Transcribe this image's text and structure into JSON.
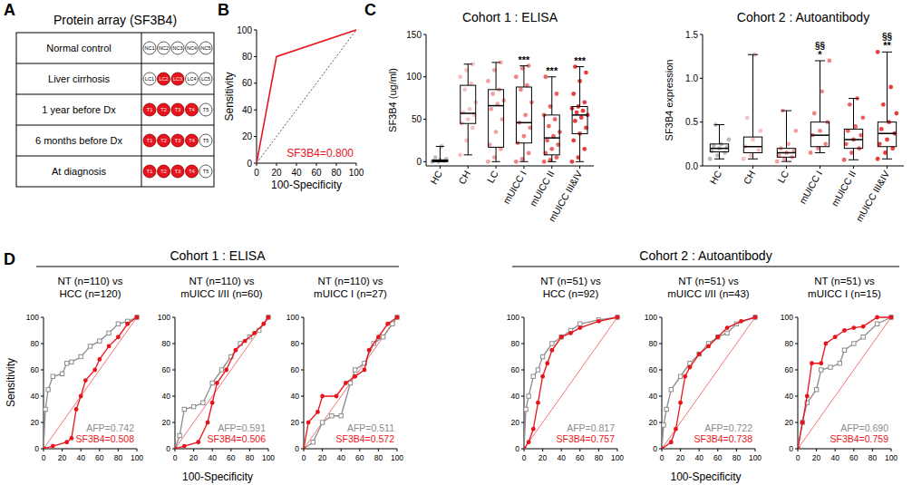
{
  "panel_labels": [
    "A",
    "B",
    "C",
    "D"
  ],
  "protein_array": {
    "title": "Protein array (SF3B4)",
    "color": "#e8141b",
    "rows": [
      {
        "label": "Normal control",
        "spots": [
          {
            "label": "NC1",
            "positive": false
          },
          {
            "label": "NC2",
            "positive": false
          },
          {
            "label": "NC3",
            "positive": false
          },
          {
            "label": "NC4",
            "positive": false
          },
          {
            "label": "NC5",
            "positive": false
          }
        ]
      },
      {
        "label": "Liver cirrhosis",
        "spots": [
          {
            "label": "LC1",
            "positive": false
          },
          {
            "label": "LC2",
            "positive": true
          },
          {
            "label": "LC3",
            "positive": true
          },
          {
            "label": "LC4",
            "positive": false
          },
          {
            "label": "LC5",
            "positive": false
          }
        ]
      },
      {
        "label": "1 year before Dx",
        "spots": [
          {
            "label": "T1",
            "positive": true
          },
          {
            "label": "T2",
            "positive": true
          },
          {
            "label": "T3",
            "positive": true
          },
          {
            "label": "T4",
            "positive": true
          },
          {
            "label": "T5",
            "positive": false
          }
        ]
      },
      {
        "label": "6 months before Dx",
        "spots": [
          {
            "label": "T1",
            "positive": true
          },
          {
            "label": "T2",
            "positive": true
          },
          {
            "label": "T3",
            "positive": true
          },
          {
            "label": "T4",
            "positive": true
          },
          {
            "label": "T5",
            "positive": false
          }
        ]
      },
      {
        "label": "At diagnosis",
        "spots": [
          {
            "label": "T1",
            "positive": true
          },
          {
            "label": "T2",
            "positive": true
          },
          {
            "label": "T3",
            "positive": true
          },
          {
            "label": "T4",
            "positive": true
          },
          {
            "label": "T5",
            "positive": false
          }
        ]
      }
    ]
  },
  "roc_groups": {
    "y_label": "Sensitivity",
    "groups": [
      {
        "title": "Cohort 1 : ELISA",
        "x_label": "100-Specificity"
      },
      {
        "title": "Cohort 2 : Autoantibody",
        "x_label": "100-Specificity"
      }
    ]
  },
  "chart_data": [
    {
      "type": "line",
      "x_label": "100-Specificity",
      "y_label": "Sensitivity",
      "xlim": [
        0,
        100
      ],
      "ylim": [
        0,
        100
      ],
      "xticks": [
        0,
        20,
        40,
        60,
        80,
        100
      ],
      "yticks": [
        0,
        20,
        40,
        60,
        80,
        100
      ],
      "series": [
        {
          "label": "SF3B4=0.800",
          "color": "#e8141b",
          "x": [
            0,
            20,
            100
          ],
          "values": [
            0,
            80,
            100
          ]
        }
      ]
    },
    {
      "type": "box",
      "title": "Cohort 1 : ELISA",
      "y_label": "SF3B4 (ug/ml)",
      "categories": [
        "HC",
        "CH",
        "LC",
        "mUICC I",
        "mUICC II",
        "mUICC III&IV"
      ],
      "ylim": [
        -5,
        150
      ],
      "yticks": [
        0,
        50,
        100,
        150
      ],
      "colors": [
        "#b0b0b0",
        "#f4b6b6",
        "#f08f8f",
        "#ec6f6f",
        "#e84848",
        "#e41a1c"
      ],
      "min": [
        0,
        8,
        0,
        0,
        0,
        0
      ],
      "q1": [
        0,
        45,
        17,
        22,
        8,
        33
      ],
      "median": [
        1,
        57,
        66,
        46,
        28,
        55
      ],
      "q3": [
        2,
        90,
        85,
        88,
        55,
        65
      ],
      "max": [
        18,
        115,
        117,
        113,
        100,
        112
      ],
      "points": [
        [
          0,
          0,
          1,
          1,
          2,
          3,
          5,
          18
        ],
        [
          8,
          25,
          40,
          45,
          50,
          55,
          58,
          62,
          70,
          85,
          92,
          100,
          108,
          115
        ],
        [
          0,
          5,
          15,
          20,
          35,
          50,
          62,
          68,
          72,
          80,
          85,
          95,
          108,
          117
        ],
        [
          0,
          3,
          10,
          22,
          30,
          40,
          46,
          55,
          70,
          85,
          90,
          100,
          110,
          113
        ],
        [
          0,
          2,
          5,
          10,
          15,
          20,
          25,
          30,
          35,
          42,
          50,
          55,
          65,
          80,
          100
        ],
        [
          0,
          5,
          15,
          25,
          33,
          40,
          48,
          52,
          55,
          58,
          60,
          63,
          65,
          70,
          80,
          95,
          105,
          112
        ]
      ],
      "significance": [
        null,
        null,
        null,
        "***",
        "***",
        "***"
      ]
    },
    {
      "type": "box",
      "title": "Cohort 2 : Autoantibody",
      "y_label": "SF3B4 expression",
      "categories": [
        "HC",
        "CH",
        "LC",
        "mUICC I",
        "mUICC II",
        "mUICC III&IV"
      ],
      "ylim": [
        0,
        1.5
      ],
      "yticks": [
        {
          "value": 0,
          "label": "0.0"
        },
        0.5,
        {
          "value": 1,
          "label": "1.0"
        },
        1.5
      ],
      "colors": [
        "#b0b0b0",
        "#f4b6b6",
        "#f08f8f",
        "#ec6f6f",
        "#e84848",
        "#e41a1c"
      ],
      "min": [
        0.08,
        0.08,
        0.05,
        0.15,
        0.07,
        0.08
      ],
      "q1": [
        0.16,
        0.15,
        0.1,
        0.22,
        0.2,
        0.22
      ],
      "median": [
        0.2,
        0.22,
        0.15,
        0.35,
        0.3,
        0.37
      ],
      "q3": [
        0.25,
        0.33,
        0.2,
        0.5,
        0.42,
        0.5
      ],
      "max": [
        0.47,
        1.27,
        0.63,
        1.2,
        0.77,
        1.3
      ],
      "points": [
        [
          0.08,
          0.12,
          0.15,
          0.17,
          0.2,
          0.21,
          0.23,
          0.25,
          0.3,
          0.47
        ],
        [
          0.08,
          0.12,
          0.18,
          0.22,
          0.3,
          0.4,
          0.55,
          1.27
        ],
        [
          0.05,
          0.08,
          0.1,
          0.12,
          0.15,
          0.17,
          0.2,
          0.25,
          0.4,
          0.63
        ],
        [
          0.15,
          0.2,
          0.25,
          0.35,
          0.4,
          0.5,
          0.6,
          0.85,
          1.2
        ],
        [
          0.07,
          0.15,
          0.2,
          0.25,
          0.3,
          0.35,
          0.4,
          0.45,
          0.55,
          0.7,
          0.77
        ],
        [
          0.08,
          0.15,
          0.2,
          0.25,
          0.3,
          0.37,
          0.42,
          0.5,
          0.6,
          0.7,
          0.9,
          1.3
        ]
      ],
      "significance": [
        null,
        null,
        null,
        "*",
        null,
        "**"
      ],
      "significance_2": [
        null,
        null,
        null,
        "§§",
        null,
        "§§"
      ]
    },
    {
      "type": "line",
      "title": [
        "NT (n=110) vs",
        "HCC (n=120)"
      ],
      "xlim": [
        0,
        100
      ],
      "ylim": [
        0,
        100
      ],
      "xticks": [
        0,
        20,
        40,
        60,
        80,
        100
      ],
      "yticks": [
        0,
        20,
        40,
        60,
        80,
        100
      ],
      "series": [
        {
          "label": "AFP=0.742",
          "color": "#8c8c8c",
          "marker": "square",
          "x": [
            0,
            2,
            5,
            10,
            20,
            25,
            30,
            40,
            50,
            60,
            70,
            80,
            90,
            100
          ],
          "values": [
            0,
            30,
            45,
            55,
            57,
            65,
            66,
            70,
            78,
            82,
            88,
            95,
            97,
            100
          ]
        },
        {
          "label": "SF3B4=0.508",
          "color": "#e8141b",
          "marker": "circle",
          "x": [
            0,
            10,
            25,
            30,
            35,
            40,
            45,
            55,
            60,
            70,
            80,
            90,
            100
          ],
          "values": [
            0,
            2,
            5,
            8,
            30,
            40,
            52,
            60,
            68,
            78,
            85,
            95,
            100
          ]
        }
      ]
    },
    {
      "type": "line",
      "title": [
        "NT (n=110) vs",
        "mUICC I/II (n=60)"
      ],
      "xlim": [
        0,
        100
      ],
      "ylim": [
        0,
        100
      ],
      "xticks": [
        0,
        20,
        40,
        60,
        80,
        100
      ],
      "yticks": [
        0,
        20,
        40,
        60,
        80,
        100
      ],
      "series": [
        {
          "label": "AFP=0.591",
          "color": "#8c8c8c",
          "marker": "square",
          "x": [
            0,
            5,
            10,
            20,
            30,
            40,
            50,
            60,
            70,
            80,
            90,
            100
          ],
          "values": [
            0,
            10,
            30,
            32,
            35,
            50,
            60,
            70,
            80,
            85,
            90,
            100
          ]
        },
        {
          "label": "SF3B4=0.506",
          "color": "#e8141b",
          "marker": "circle",
          "x": [
            0,
            10,
            25,
            35,
            40,
            45,
            55,
            65,
            75,
            85,
            95,
            100
          ],
          "values": [
            0,
            2,
            5,
            20,
            35,
            50,
            60,
            75,
            82,
            88,
            95,
            100
          ]
        }
      ]
    },
    {
      "type": "line",
      "title": [
        "NT (n=110) vs",
        "mUICC I (n=27)"
      ],
      "xlim": [
        0,
        100
      ],
      "ylim": [
        0,
        100
      ],
      "xticks": [
        0,
        20,
        40,
        60,
        80,
        100
      ],
      "yticks": [
        0,
        20,
        40,
        60,
        80,
        100
      ],
      "series": [
        {
          "label": "AFP=0.511",
          "color": "#8c8c8c",
          "marker": "square",
          "x": [
            0,
            10,
            20,
            30,
            40,
            50,
            55,
            65,
            75,
            85,
            95,
            100
          ],
          "values": [
            0,
            5,
            20,
            25,
            25,
            50,
            60,
            65,
            80,
            85,
            95,
            100
          ]
        },
        {
          "label": "SF3B4=0.572",
          "color": "#e8141b",
          "marker": "circle",
          "x": [
            0,
            5,
            15,
            20,
            35,
            45,
            55,
            65,
            70,
            80,
            90,
            100
          ],
          "values": [
            0,
            20,
            28,
            40,
            40,
            50,
            55,
            60,
            75,
            85,
            95,
            100
          ]
        }
      ]
    },
    {
      "type": "line",
      "title": [
        "NT (n=51) vs",
        "HCC (n=92)"
      ],
      "xlim": [
        0,
        100
      ],
      "ylim": [
        0,
        100
      ],
      "xticks": [
        0,
        20,
        40,
        60,
        80,
        100
      ],
      "yticks": [
        0,
        20,
        40,
        60,
        80,
        100
      ],
      "series": [
        {
          "label": "AFP=0.817",
          "color": "#8c8c8c",
          "marker": "square",
          "x": [
            0,
            2,
            5,
            10,
            15,
            20,
            30,
            40,
            50,
            60,
            80,
            100
          ],
          "values": [
            0,
            30,
            40,
            55,
            60,
            70,
            80,
            85,
            90,
            95,
            98,
            100
          ]
        },
        {
          "label": "SF3B4=0.757",
          "color": "#e8141b",
          "marker": "circle",
          "x": [
            0,
            5,
            10,
            15,
            20,
            25,
            30,
            40,
            50,
            60,
            80,
            100
          ],
          "values": [
            0,
            5,
            15,
            35,
            55,
            65,
            75,
            85,
            88,
            92,
            97,
            100
          ]
        }
      ]
    },
    {
      "type": "line",
      "title": [
        "NT (n=51) vs",
        "mUICC I/II (n=43)"
      ],
      "xlim": [
        0,
        100
      ],
      "ylim": [
        0,
        100
      ],
      "xticks": [
        0,
        20,
        40,
        60,
        80,
        100
      ],
      "yticks": [
        0,
        20,
        40,
        60,
        80,
        100
      ],
      "series": [
        {
          "label": "AFP=0.722",
          "color": "#8c8c8c",
          "marker": "square",
          "x": [
            0,
            2,
            5,
            10,
            20,
            30,
            40,
            50,
            60,
            70,
            80,
            100
          ],
          "values": [
            0,
            18,
            30,
            45,
            55,
            65,
            72,
            80,
            85,
            88,
            95,
            100
          ]
        },
        {
          "label": "SF3B4=0.738",
          "color": "#e8141b",
          "marker": "circle",
          "x": [
            0,
            10,
            15,
            20,
            25,
            30,
            40,
            50,
            60,
            70,
            85,
            100
          ],
          "values": [
            0,
            5,
            15,
            35,
            55,
            62,
            72,
            78,
            85,
            92,
            97,
            100
          ]
        }
      ]
    },
    {
      "type": "line",
      "title": [
        "NT (n=51) vs",
        "mUICC I (n=15)"
      ],
      "xlim": [
        0,
        100
      ],
      "ylim": [
        0,
        100
      ],
      "xticks": [
        0,
        20,
        40,
        60,
        80,
        100
      ],
      "yticks": [
        0,
        20,
        40,
        60,
        80,
        100
      ],
      "series": [
        {
          "label": "AFP=0.690",
          "color": "#8c8c8c",
          "marker": "square",
          "x": [
            0,
            5,
            10,
            20,
            25,
            35,
            45,
            50,
            60,
            70,
            85,
            100
          ],
          "values": [
            0,
            20,
            35,
            45,
            60,
            62,
            65,
            75,
            80,
            85,
            95,
            100
          ]
        },
        {
          "label": "SF3B4=0.759",
          "color": "#e8141b",
          "marker": "circle",
          "x": [
            0,
            5,
            10,
            15,
            25,
            30,
            40,
            50,
            60,
            70,
            85,
            100
          ],
          "values": [
            0,
            20,
            40,
            65,
            65,
            80,
            85,
            90,
            92,
            93,
            100,
            100
          ]
        }
      ]
    }
  ]
}
